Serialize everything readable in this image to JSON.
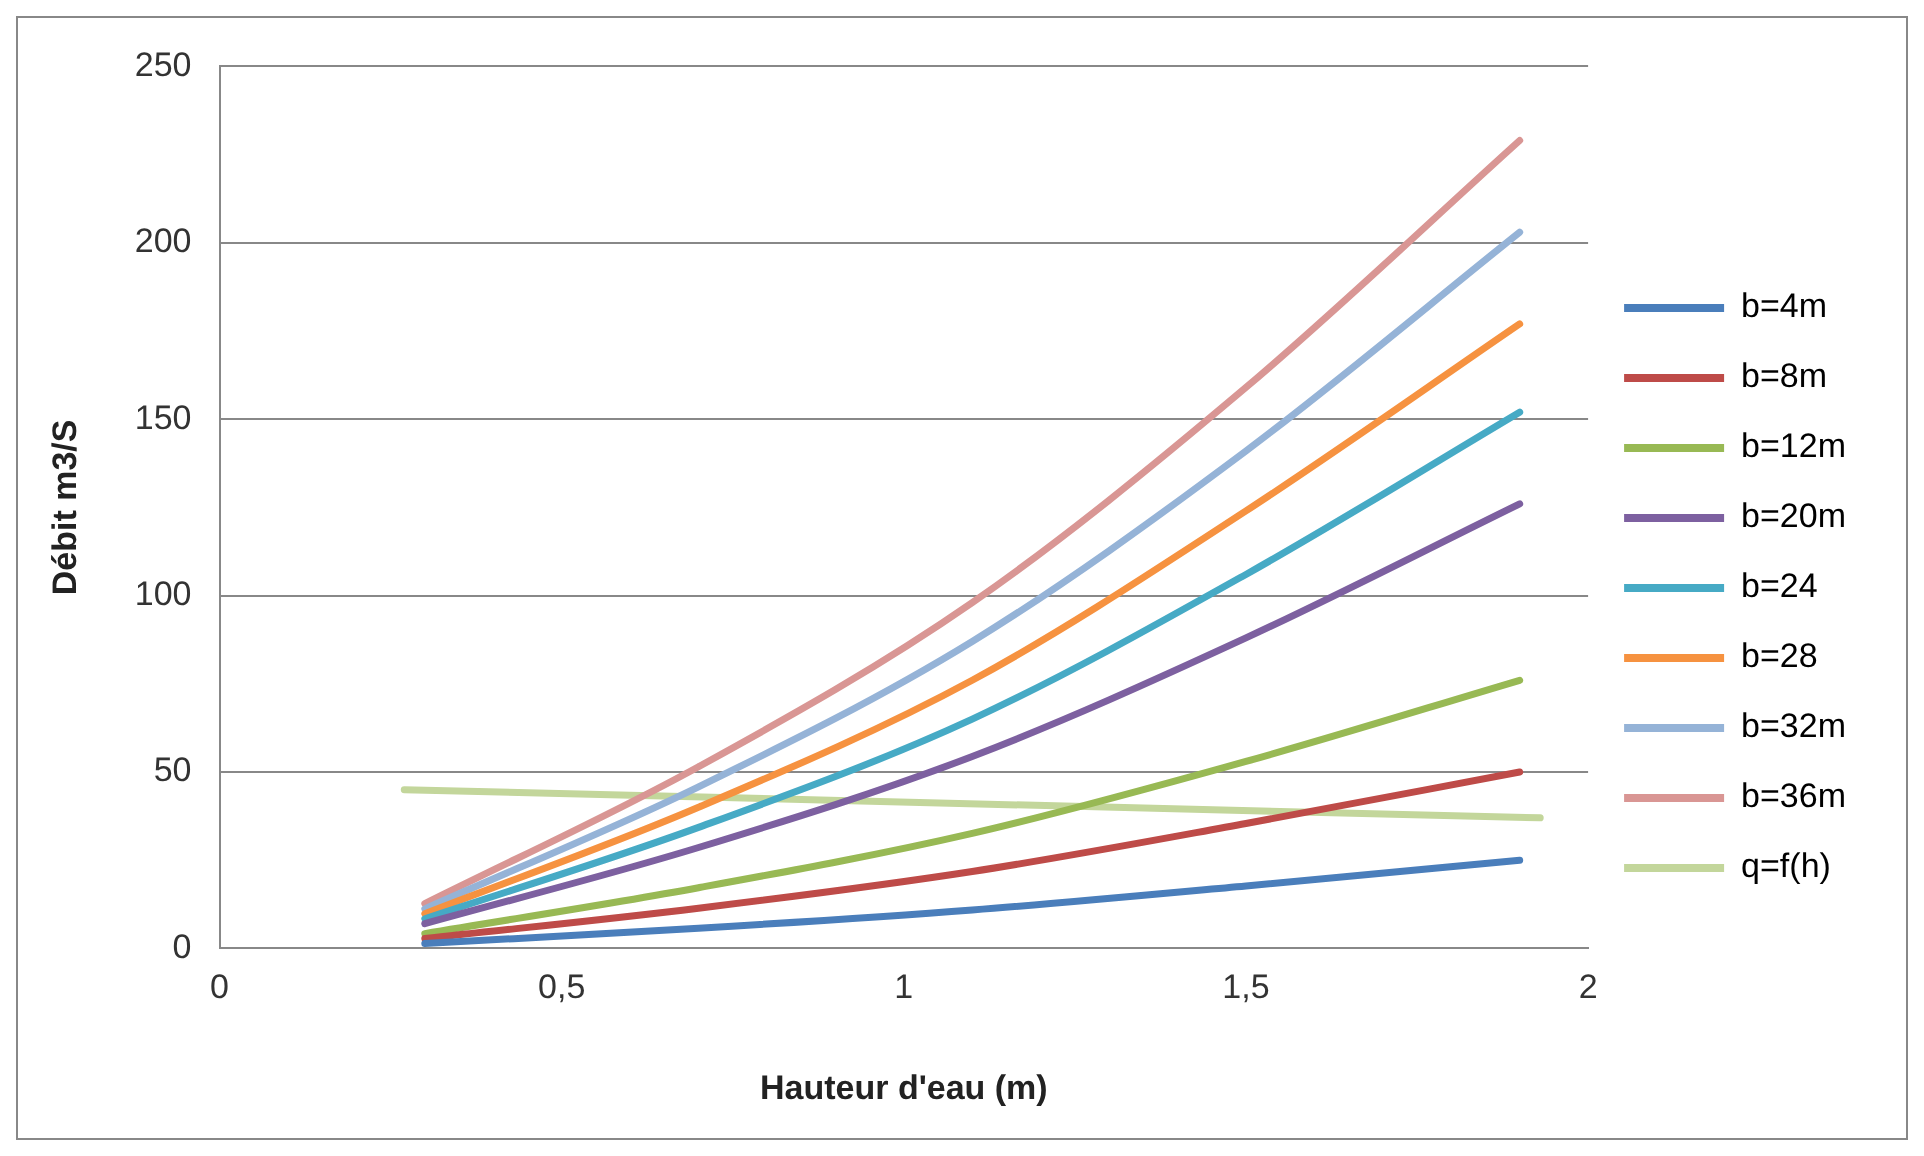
{
  "chart_data": {
    "type": "line",
    "xlabel": "Hauteur d'eau (m)",
    "ylabel": "Débit m3/S",
    "xlim": [
      0,
      2
    ],
    "xticks": [
      0,
      {
        "value": 0.5,
        "label": "0,5"
      },
      1,
      {
        "value": 1.5,
        "label": "1,5"
      },
      2
    ],
    "ylim": [
      0,
      250
    ],
    "yticks": [
      0,
      50,
      100,
      150,
      200,
      250
    ],
    "grid": "y",
    "legend": "right",
    "marker": "none",
    "line_style": "solid",
    "x": [
      0.3,
      0.7,
      1.1,
      1.5,
      1.9
    ],
    "series": [
      {
        "name": "b=4m",
        "color": "#4a7ebb",
        "values": [
          1.4,
          5.7,
          10.9,
          17.7,
          25
        ]
      },
      {
        "name": "b=8m",
        "color": "#be4b48",
        "values": [
          2.8,
          11.4,
          21.8,
          35.4,
          50
        ]
      },
      {
        "name": "b=12m",
        "color": "#98b954",
        "values": [
          4.2,
          17.2,
          32.6,
          53,
          76
        ]
      },
      {
        "name": "b=20m",
        "color": "#7d60a0",
        "values": [
          7,
          28.6,
          54.4,
          88,
          126
        ]
      },
      {
        "name": "b=24",
        "color": "#46aac5",
        "values": [
          8.4,
          34.3,
          65,
          106,
          152
        ]
      },
      {
        "name": "b=28",
        "color": "#f69240",
        "values": [
          9.8,
          40,
          76,
          124,
          177
        ]
      },
      {
        "name": "b=32m",
        "color": "#95b3d7",
        "values": [
          11.2,
          45.8,
          87,
          141,
          203
        ]
      },
      {
        "name": "b=36m",
        "color": "#d99694",
        "values": [
          12.7,
          51.5,
          98,
          159,
          229
        ]
      },
      {
        "name": "q=f(h)",
        "color": "#c3d69b",
        "x": [
          0.27,
          1.93
        ],
        "values": [
          45,
          37
        ]
      }
    ]
  }
}
